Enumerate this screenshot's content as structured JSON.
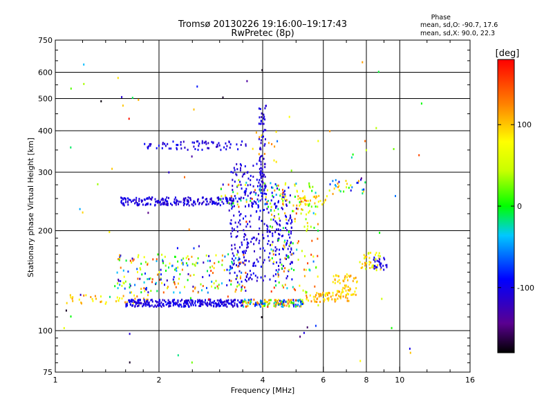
{
  "chart_data": {
    "type": "scatter",
    "title": "Tromsø 20130226 19:16:00–19:17:43",
    "subtitle": "RwPretec (8p)",
    "xlabel": "Frequency [MHz]",
    "ylabel": "Stationary phase Virtual Height [km]",
    "x_scale": "log",
    "y_scale": "log",
    "xlim": [
      1,
      16
    ],
    "ylim": [
      75,
      750
    ],
    "x_ticks": [
      1,
      2,
      4,
      6,
      8,
      10,
      16
    ],
    "y_ticks": [
      75,
      100,
      200,
      300,
      400,
      500,
      600,
      750
    ],
    "grid_x": [
      2,
      4,
      6,
      8,
      10
    ],
    "grid_y": [
      100,
      200,
      300,
      400,
      500,
      600
    ],
    "colorbar": {
      "label": "[deg]",
      "range": [
        -180,
        180
      ],
      "ticks": [
        100,
        0,
        -100
      ]
    },
    "phase_info": {
      "heading": "Phase",
      "line_o": "mean, sd,O: -90.7, 17.6",
      "line_x": "mean, sd,X:  90.0, 22.3"
    },
    "clusters": [
      {
        "x": [
          1.05,
          1.9
        ],
        "y": [
          120,
          128
        ],
        "phase": [
          60,
          130
        ],
        "n": 40
      },
      {
        "x": [
          1.6,
          3.5
        ],
        "y": [
          118,
          124
        ],
        "phase": [
          -120,
          -90
        ],
        "n": 280
      },
      {
        "x": [
          3.5,
          5.3
        ],
        "y": [
          118,
          124
        ],
        "phase": [
          -110,
          160
        ],
        "n": 160
      },
      {
        "x": [
          5.3,
          7.2
        ],
        "y": [
          122,
          130
        ],
        "phase": [
          80,
          130
        ],
        "n": 70
      },
      {
        "x": [
          6.4,
          7.6
        ],
        "y": [
          128,
          148
        ],
        "phase": [
          80,
          120
        ],
        "n": 60
      },
      {
        "x": [
          7.6,
          8.8
        ],
        "y": [
          152,
          172
        ],
        "phase": [
          40,
          120
        ],
        "n": 40
      },
      {
        "x": [
          8.4,
          9.2
        ],
        "y": [
          152,
          166
        ],
        "phase": [
          -110,
          -95
        ],
        "n": 25
      },
      {
        "x": [
          1.5,
          3.6
        ],
        "y": [
          130,
          170
        ],
        "phase": [
          -130,
          160
        ],
        "n": 220
      },
      {
        "x": [
          3.2,
          4.0
        ],
        "y": [
          140,
          320
        ],
        "phase": [
          -120,
          -90
        ],
        "n": 200
      },
      {
        "x": [
          3.9,
          4.1
        ],
        "y": [
          250,
          480
        ],
        "phase": [
          -120,
          -95
        ],
        "n": 70
      },
      {
        "x": [
          4.0,
          4.9
        ],
        "y": [
          140,
          270
        ],
        "phase": [
          -115,
          -90
        ],
        "n": 150
      },
      {
        "x": [
          4.2,
          5.8
        ],
        "y": [
          130,
          280
        ],
        "phase": [
          -40,
          160
        ],
        "n": 140
      },
      {
        "x": [
          1.55,
          3.3
        ],
        "y": [
          238,
          252
        ],
        "phase": [
          -120,
          -95
        ],
        "n": 200
      },
      {
        "x": [
          3.0,
          4.6
        ],
        "y": [
          235,
          280
        ],
        "phase": [
          -120,
          160
        ],
        "n": 60
      },
      {
        "x": [
          4.6,
          6.3
        ],
        "y": [
          238,
          255
        ],
        "phase": [
          70,
          120
        ],
        "n": 35
      },
      {
        "x": [
          6.2,
          8.0
        ],
        "y": [
          258,
          285
        ],
        "phase": [
          -110,
          120
        ],
        "n": 30
      },
      {
        "x": [
          1.8,
          3.6
        ],
        "y": [
          350,
          372
        ],
        "phase": [
          -120,
          -90
        ],
        "n": 70
      },
      {
        "x": [
          3.7,
          4.5
        ],
        "y": [
          320,
          400
        ],
        "phase": [
          80,
          130
        ],
        "n": 12
      },
      {
        "x": [
          1.05,
          12
        ],
        "y": [
          80,
          650
        ],
        "phase": [
          -180,
          180
        ],
        "n": 80
      }
    ]
  }
}
